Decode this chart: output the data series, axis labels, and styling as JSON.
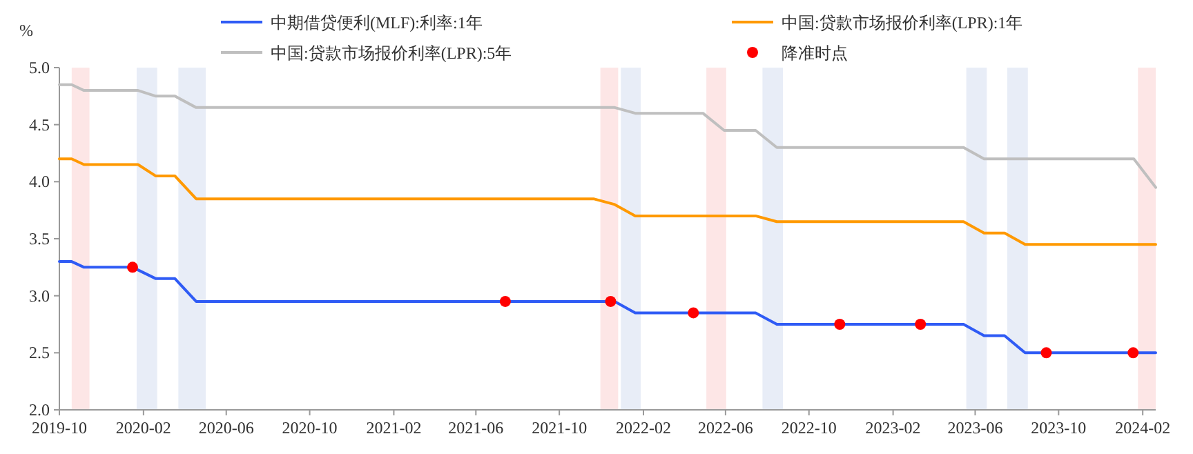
{
  "chart_data": {
    "type": "line",
    "ylabel": "%",
    "xlim": [
      "2019-10",
      "2024-02-20"
    ],
    "ylim": [
      2,
      5
    ],
    "xticks": [
      {
        "value": "2019-10",
        "label": "2019-10"
      },
      {
        "value": "2020-02",
        "label": "2020-02"
      },
      {
        "value": "2020-06",
        "label": "2020-06"
      },
      {
        "value": "2020-10",
        "label": "2020-10"
      },
      {
        "value": "2021-02",
        "label": "2021-02"
      },
      {
        "value": "2021-06",
        "label": "2021-06"
      },
      {
        "value": "2021-10",
        "label": "2021-10"
      },
      {
        "value": "2022-02",
        "label": "2022-02"
      },
      {
        "value": "2022-06",
        "label": "2022-06"
      },
      {
        "value": "2022-10",
        "label": "2022-10"
      },
      {
        "value": "2023-02",
        "label": "2023-02"
      },
      {
        "value": "2023-06",
        "label": "2023-06"
      },
      {
        "value": "2023-10",
        "label": "2023-10"
      },
      {
        "value": "2024-02",
        "label": "2024-02"
      }
    ],
    "yticks": [
      {
        "value": 2,
        "label": "2.0"
      },
      {
        "value": 2.5,
        "label": "2.5"
      },
      {
        "value": 3,
        "label": "3.0"
      },
      {
        "value": 3.5,
        "label": "3.5"
      },
      {
        "value": 4,
        "label": "4.0"
      },
      {
        "value": 4.5,
        "label": "4.5"
      },
      {
        "value": 5,
        "label": "5.0"
      }
    ],
    "grid": false,
    "legend": "top",
    "series": [
      {
        "name": "中期借贷便利(MLF):利率:1年",
        "color": "#2f5bf5",
        "x": [
          "2019-10",
          "2019-10-19",
          "2019-11-06",
          "2020-01-16",
          "2020-02-19",
          "2020-03-18",
          "2020-04-18",
          "2021-12-21",
          "2022-01-20",
          "2022-07-15",
          "2022-08-15",
          "2023-05-15",
          "2023-06-14",
          "2023-07-14",
          "2023-08-13",
          "2024-02-20"
        ],
        "values": [
          3.3,
          3.3,
          3.25,
          3.25,
          3.15,
          3.15,
          2.95,
          2.95,
          2.85,
          2.85,
          2.75,
          2.75,
          2.65,
          2.65,
          2.5,
          2.5
        ]
      },
      {
        "name": "中国:贷款市场报价利率(LPR):1年",
        "color": "#ff9900",
        "x": [
          "2019-10",
          "2019-10-19",
          "2019-11-06",
          "2020-01-24",
          "2020-02-19",
          "2020-03-18",
          "2020-04-18",
          "2021-11-20",
          "2021-12-21",
          "2022-01-20",
          "2022-07-15",
          "2022-08-15",
          "2023-05-15",
          "2023-06-14",
          "2023-07-14",
          "2023-08-13",
          "2024-02-20"
        ],
        "values": [
          4.2,
          4.2,
          4.15,
          4.15,
          4.05,
          4.05,
          3.85,
          3.85,
          3.8,
          3.7,
          3.7,
          3.65,
          3.65,
          3.55,
          3.55,
          3.45,
          3.45
        ]
      },
      {
        "name": "中国:贷款市场报价利率(LPR):5年",
        "color": "#bfbfbf",
        "x": [
          "2019-10",
          "2019-10-19",
          "2019-11-06",
          "2020-01-24",
          "2020-02-19",
          "2020-03-18",
          "2020-04-18",
          "2021-12-21",
          "2022-01-20",
          "2022-04-29",
          "2022-05-30",
          "2022-07-15",
          "2022-08-15",
          "2023-05-15",
          "2023-06-14",
          "2024-01-19",
          "2024-02-20"
        ],
        "values": [
          4.85,
          4.85,
          4.8,
          4.8,
          4.75,
          4.75,
          4.65,
          4.65,
          4.6,
          4.6,
          4.45,
          4.45,
          4.3,
          4.3,
          4.2,
          4.2,
          3.95
        ]
      },
      {
        "name": "降准时点",
        "color": "#ff0000",
        "type": "scatter",
        "marker": "circle",
        "x": [
          "2020-01-16",
          "2021-07-14",
          "2021-12-15",
          "2022-04-15",
          "2022-11-15",
          "2023-03-13",
          "2023-09-13",
          "2024-01-18"
        ],
        "values": [
          3.25,
          2.95,
          2.95,
          2.85,
          2.75,
          2.75,
          2.5,
          2.5
        ]
      }
    ],
    "bands": [
      {
        "axis": "x",
        "from": "2019-10-19",
        "to": "2019-11-14",
        "color": "#fde6e6"
      },
      {
        "axis": "x",
        "from": "2020-01-22",
        "to": "2020-02-21",
        "color": "#e8edf7"
      },
      {
        "axis": "x",
        "from": "2020-03-23",
        "to": "2020-05-02",
        "color": "#e8edf7"
      },
      {
        "axis": "x",
        "from": "2021-11-30",
        "to": "2021-12-26",
        "color": "#fde6e6"
      },
      {
        "axis": "x",
        "from": "2021-12-30",
        "to": "2022-01-28",
        "color": "#e8edf7"
      },
      {
        "axis": "x",
        "from": "2022-05-04",
        "to": "2022-06-02",
        "color": "#fde6e6"
      },
      {
        "axis": "x",
        "from": "2022-07-25",
        "to": "2022-08-24",
        "color": "#e8edf7"
      },
      {
        "axis": "x",
        "from": "2023-05-19",
        "to": "2023-06-18",
        "color": "#e8edf7"
      },
      {
        "axis": "x",
        "from": "2023-07-18",
        "to": "2023-08-17",
        "color": "#e8edf7"
      },
      {
        "axis": "x",
        "from": "2024-01-25",
        "to": "2024-02-20",
        "color": "#fde6e6"
      }
    ]
  }
}
